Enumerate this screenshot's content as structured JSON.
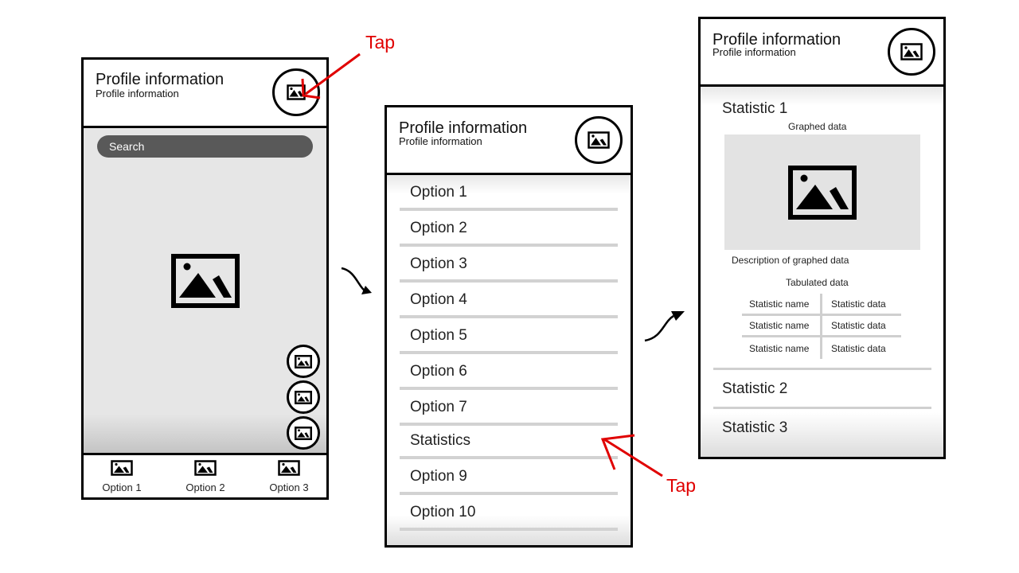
{
  "colors": {
    "annotation": "#e00000",
    "frame": "#000000",
    "search_bg": "#595959"
  },
  "annotations": {
    "tap_top": "Tap",
    "tap_bottom": "Tap"
  },
  "screen1": {
    "header": {
      "title": "Profile information",
      "subtitle": "Profile information",
      "icon": "image-icon"
    },
    "search": {
      "placeholder": "Search"
    },
    "hero_icon": "image-icon",
    "fab_icons": [
      "image-icon",
      "image-icon",
      "image-icon"
    ],
    "bottom_nav": [
      {
        "label": "Option 1",
        "icon": "image-icon"
      },
      {
        "label": "Option 2",
        "icon": "image-icon"
      },
      {
        "label": "Option 3",
        "icon": "image-icon"
      }
    ]
  },
  "screen2": {
    "header": {
      "title": "Profile information",
      "subtitle": "Profile information",
      "icon": "image-icon"
    },
    "options": [
      "Option 1",
      "Option 2",
      "Option 3",
      "Option 4",
      "Option 5",
      "Option 6",
      "Option 7",
      "Statistics",
      "Option 9",
      "Option 10"
    ]
  },
  "screen3": {
    "header": {
      "title": "Profile information",
      "subtitle": "Profile information",
      "icon": "image-icon"
    },
    "statistic1": {
      "title": "Statistic 1",
      "graph_label": "Graphed data",
      "graph_icon": "image-icon",
      "description": "Description of graphed data",
      "table_label": "Tabulated data",
      "rows": [
        {
          "name": "Statistic name",
          "value": "Statistic data"
        },
        {
          "name": "Statistic name",
          "value": "Statistic data"
        },
        {
          "name": "Statistic name",
          "value": "Statistic data"
        }
      ]
    },
    "statistic2": {
      "title": "Statistic 2"
    },
    "statistic3": {
      "title": "Statistic 3"
    }
  }
}
